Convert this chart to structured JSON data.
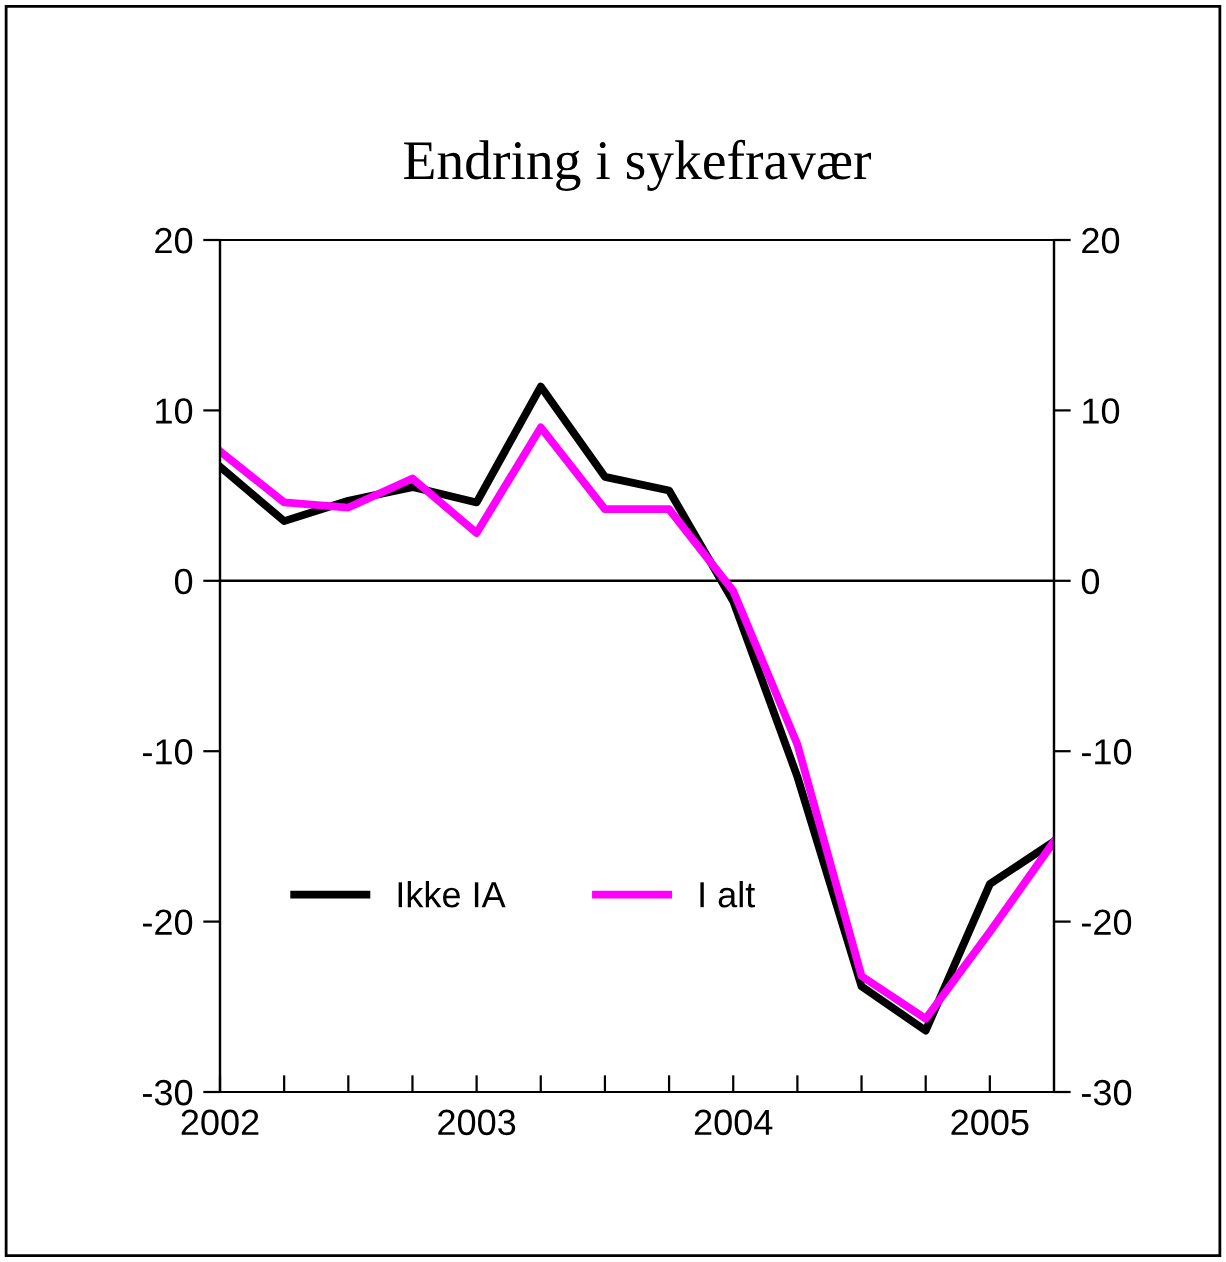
{
  "chart_data": {
    "type": "line",
    "title": "Endring i sykefravær",
    "x": [
      2002,
      2002.25,
      2002.5,
      2002.75,
      2003,
      2003.25,
      2003.5,
      2003.75,
      2004,
      2004.25,
      2004.5,
      2004.75,
      2005,
      2005.25
    ],
    "series": [
      {
        "name": "Ikke IA",
        "color": "#000000",
        "values": [
          6.7,
          3.5,
          4.7,
          5.5,
          4.6,
          11.4,
          6.1,
          5.3,
          -1.2,
          -11.5,
          -23.8,
          -26.4,
          -17.8,
          -15.3
        ]
      },
      {
        "name": "I alt",
        "color": "#ff00ff",
        "values": [
          7.6,
          4.6,
          4.3,
          6.0,
          2.8,
          9.0,
          4.2,
          4.2,
          -0.6,
          -9.6,
          -23.2,
          -25.7,
          -20.6,
          -15.3
        ]
      }
    ],
    "xlim": [
      2002,
      2005.25
    ],
    "xticks": [
      2002,
      {
        "value": 2002.25,
        "label": null
      },
      {
        "value": 2002.5,
        "label": null
      },
      {
        "value": 2002.75,
        "label": null
      },
      2003,
      {
        "value": 2003.25,
        "label": null
      },
      {
        "value": 2003.5,
        "label": null
      },
      {
        "value": 2003.75,
        "label": null
      },
      2004,
      {
        "value": 2004.25,
        "label": null
      },
      {
        "value": 2004.5,
        "label": null
      },
      {
        "value": 2004.75,
        "label": null
      },
      2005
    ],
    "ylim": [
      -30,
      20
    ],
    "yticks": [
      -30,
      -20,
      -10,
      0,
      10,
      20
    ],
    "y2lim": [
      -30,
      20
    ],
    "y2ticks": [
      -30,
      -20,
      -10,
      0,
      10,
      20
    ],
    "ref_lines": [
      {
        "axis": "y",
        "value": 0,
        "color": "#000000"
      }
    ],
    "grid": false,
    "legend": "bottom left",
    "marker": "none",
    "line_style": "solid"
  }
}
